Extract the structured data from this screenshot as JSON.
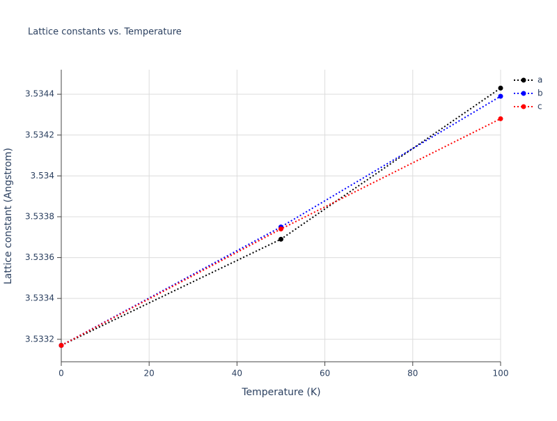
{
  "chart_data": {
    "type": "line",
    "title": "Lattice constants vs. Temperature",
    "x_label": "Temperature (K)",
    "y_label": "Lattice constant (Angstrom)",
    "x": [
      0,
      50,
      100
    ],
    "series": [
      {
        "name": "a",
        "color": "#000000",
        "values": [
          3.53317,
          3.53369,
          3.53443
        ]
      },
      {
        "name": "b",
        "color": "#0000ff",
        "values": [
          3.53317,
          3.53375,
          3.53439
        ]
      },
      {
        "name": "c",
        "color": "#ff0000",
        "values": [
          3.53317,
          3.53374,
          3.53428
        ]
      }
    ],
    "xlim": [
      0,
      100
    ],
    "xticks": [
      0,
      20,
      40,
      60,
      80,
      100
    ],
    "ylim": [
      3.53309,
      3.53452
    ],
    "yticks": [
      3.5332,
      3.5334,
      3.5336,
      3.5338,
      3.534,
      3.5342,
      3.5344
    ],
    "grid": true,
    "legend": "right"
  }
}
